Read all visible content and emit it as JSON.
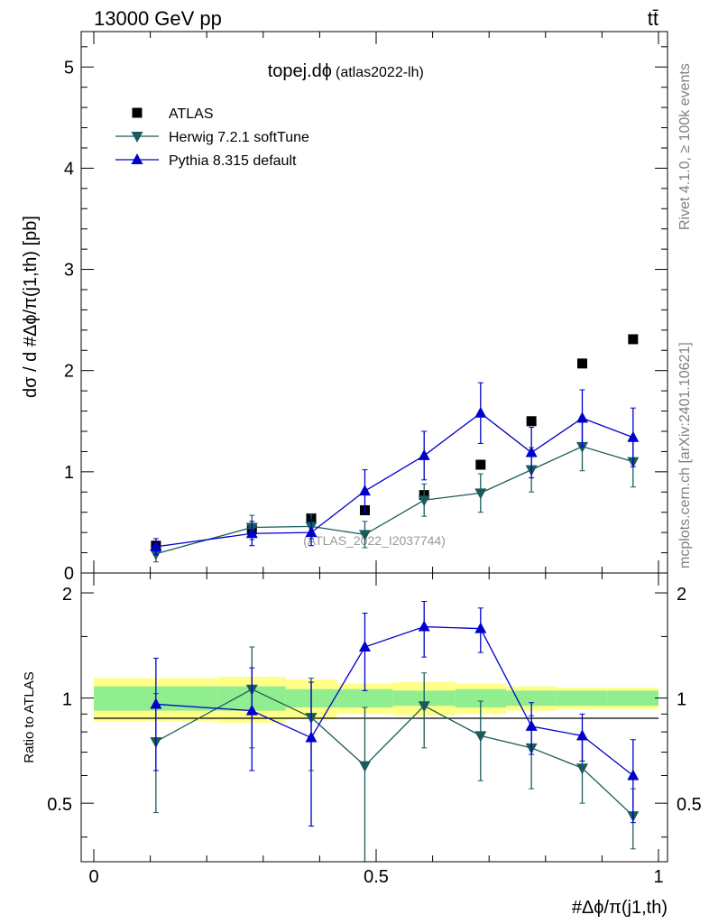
{
  "header": {
    "energy_label": "13000 GeV pp",
    "process_label": "tt̄"
  },
  "side_labels": {
    "rivet": "Rivet 4.1.0, ≥ 100k events",
    "mcplots": "mcplots.cern.ch [arXiv:2401.10621]"
  },
  "chart_data": {
    "type": "scatter",
    "title": "topej.dϕ",
    "subtitle": "(atlas2022-lh)",
    "watermark": "(ATLAS_2022_I2037744)",
    "xlabel": "#Δϕ/π(j1,th)",
    "ylabel": "dσ / d #Δϕ/π(j1,th) [pb]",
    "ratio_ylabel": "Ratio to ATLAS",
    "xlim": [
      0,
      1
    ],
    "ylim": [
      0,
      5.35
    ],
    "ratio_ylim": [
      0.34,
      2.28
    ],
    "x_ticks": [
      "0",
      "0.5",
      "1"
    ],
    "y_ticks": [
      "0",
      "1",
      "2",
      "3",
      "4",
      "5"
    ],
    "ratio_ticks": [
      "0.5",
      "1",
      "2"
    ],
    "legend_position": "top-left",
    "bin_edges": [
      0,
      0.22,
      0.34,
      0.43,
      0.53,
      0.64,
      0.73,
      0.82,
      0.91,
      1.0
    ],
    "x_points": [
      0.11,
      0.28,
      0.385,
      0.48,
      0.585,
      0.685,
      0.775,
      0.865,
      0.955
    ],
    "series": [
      {
        "name": "ATLAS",
        "values": [
          0.27,
          0.43,
          0.54,
          0.62,
          0.77,
          1.07,
          1.5,
          2.07,
          2.31
        ],
        "color": "#000000",
        "marker": "square"
      },
      {
        "name": "Herwig 7.2.1 softTune",
        "values": [
          0.19,
          0.45,
          0.46,
          0.38,
          0.72,
          0.79,
          1.02,
          1.25,
          1.1
        ],
        "errors": [
          0.08,
          0.12,
          0.12,
          0.13,
          0.16,
          0.19,
          0.22,
          0.24,
          0.25
        ],
        "ratio": [
          0.75,
          1.06,
          0.88,
          0.64,
          0.95,
          0.78,
          0.72,
          0.63,
          0.46
        ],
        "ratio_errors": [
          0.28,
          0.34,
          0.26,
          0.3,
          0.23,
          0.2,
          0.17,
          0.13,
          0.09
        ],
        "color": "#1b5b5b",
        "marker": "triangle-down"
      },
      {
        "name": "Pythia 8.315 default",
        "values": [
          0.26,
          0.39,
          0.4,
          0.81,
          1.16,
          1.58,
          1.19,
          1.53,
          1.34
        ],
        "errors": [
          0.08,
          0.12,
          0.13,
          0.21,
          0.24,
          0.3,
          0.25,
          0.28,
          0.29
        ],
        "ratio": [
          0.96,
          0.92,
          0.77,
          1.4,
          1.6,
          1.58,
          0.83,
          0.78,
          0.6
        ],
        "ratio_errors": [
          0.34,
          0.3,
          0.34,
          0.35,
          0.29,
          0.23,
          0.14,
          0.12,
          0.16
        ],
        "color": "#0000cc",
        "marker": "triangle-up"
      }
    ],
    "data_band_inner": [
      0.08,
      0.08,
      0.06,
      0.06,
      0.05,
      0.06,
      0.05,
      0.05,
      0.05
    ],
    "data_band_outer": [
      0.14,
      0.15,
      0.13,
      0.1,
      0.11,
      0.1,
      0.08,
      0.07,
      0.07
    ],
    "band_colors": {
      "inner": "#90ee90",
      "outer": "#ffff88"
    }
  }
}
